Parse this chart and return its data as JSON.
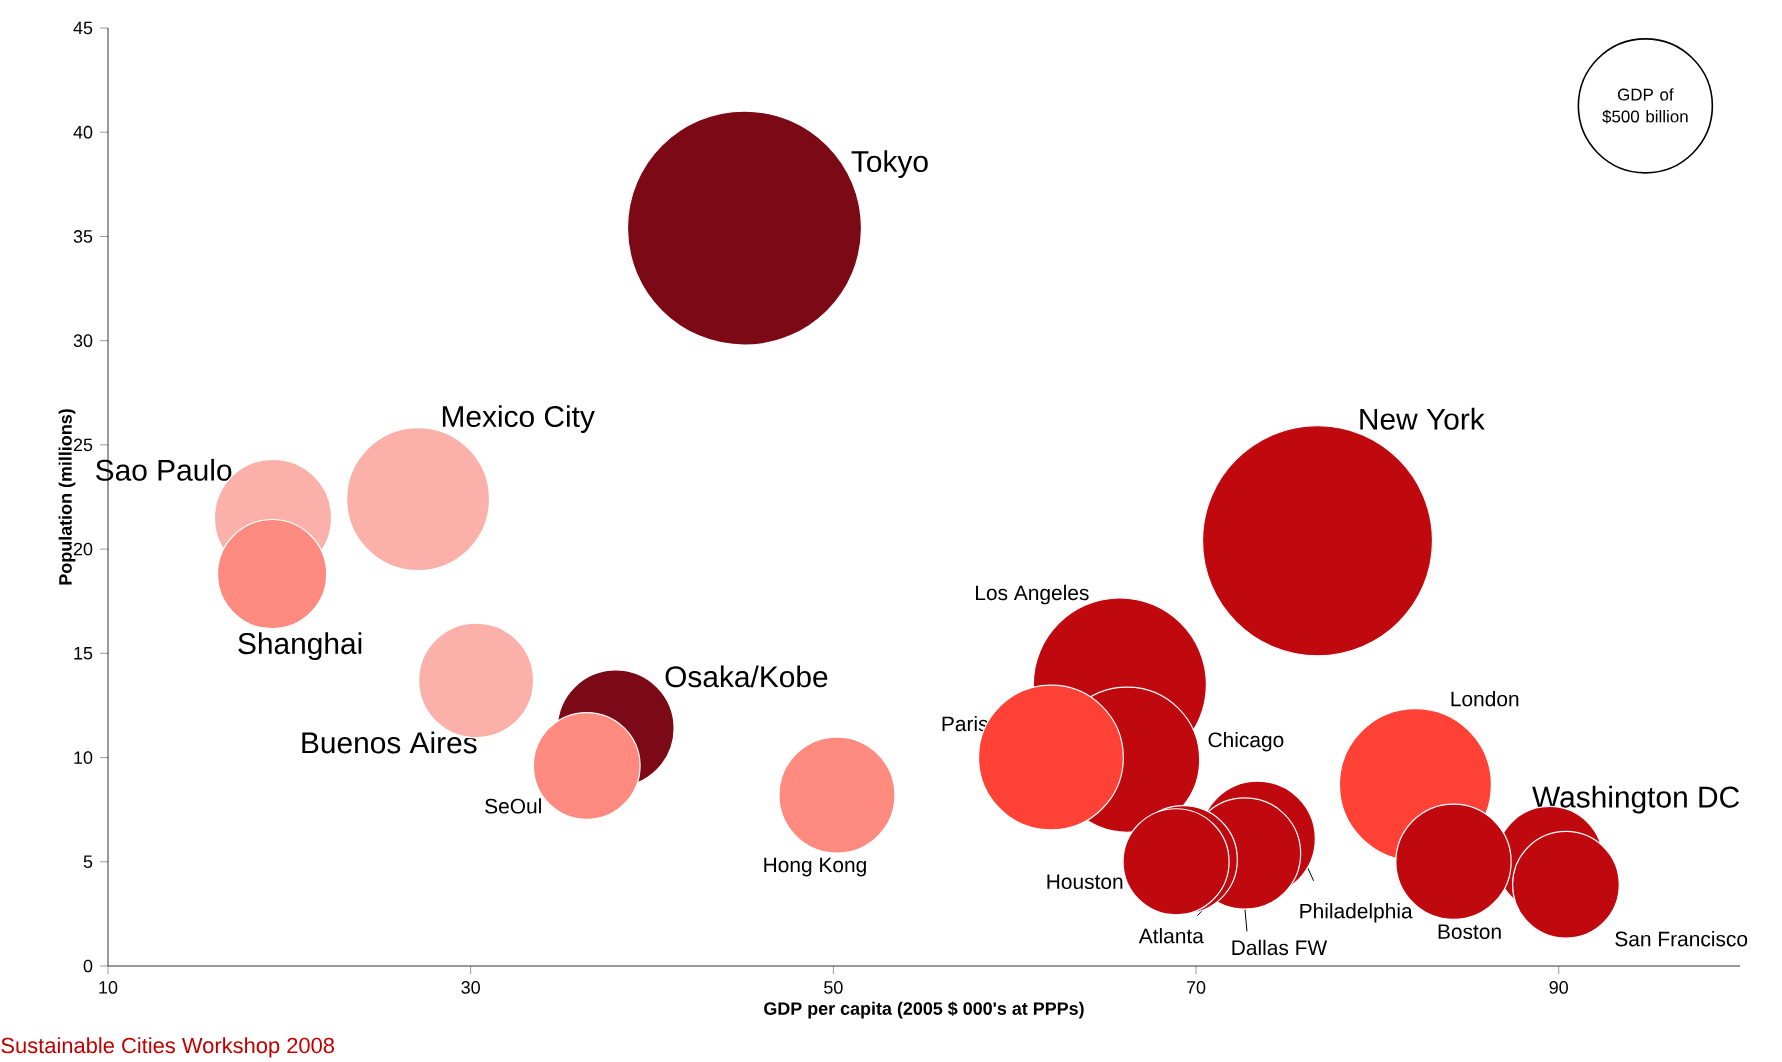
{
  "chart_data": {
    "type": "bubble",
    "xlabel": "GDP per capita (2005 $ 000's at PPPs)",
    "ylabel": "Population (millions)",
    "x": [
      45.1,
      19.1,
      19.05,
      27.1,
      30.3,
      38.0,
      36.4,
      50.2,
      76.7,
      65.8,
      66.2,
      62.0,
      82.1,
      73.4,
      72.7,
      69.3,
      68.9,
      89.5,
      84.2,
      90.4
    ],
    "values": [
      35.4,
      21.5,
      18.8,
      22.4,
      13.7,
      11.4,
      9.6,
      8.2,
      20.4,
      13.5,
      9.9,
      10.0,
      8.7,
      6.1,
      5.4,
      5.1,
      5.0,
      5.1,
      5.0,
      3.9
    ],
    "sizes": [
      1525,
      382,
      332,
      568,
      367,
      380,
      317,
      375,
      1473,
      835,
      587,
      584,
      643,
      370,
      345,
      325,
      313,
      317,
      370,
      317
    ],
    "colors": [
      "#7b0a16",
      "#fbb0a9",
      "#ff8a80",
      "#fbb0a9",
      "#fbb0a9",
      "#7b0a16",
      "#ff8a80",
      "#ff8a80",
      "#c0080f",
      "#c0080f",
      "#c0080f",
      "#ff4136",
      "#ff4136",
      "#c0080f",
      "#c0080f",
      "#c0080f",
      "#c0080f",
      "#c0080f",
      "#c0080f",
      "#c0080f"
    ],
    "size_legend": [
      {
        "value": 500,
        "label": "GDP of $500 billion"
      }
    ],
    "xlim": [
      10,
      100
    ],
    "ylim": [
      0,
      45
    ],
    "xticks": [
      10,
      30,
      50,
      70,
      90
    ],
    "yticks": [
      0,
      5,
      10,
      15,
      20,
      25,
      30,
      35,
      40,
      45
    ],
    "annotations": [
      "Tokyo",
      "Sao Paulo",
      "Shanghai",
      "Mexico City",
      "Buenos Aires",
      "Osaka/Kobe",
      "SeOul",
      "Hong Kong",
      "New York",
      "Los Angeles",
      "Chicago",
      "Paris",
      "London",
      "Philadelphia",
      "Dallas FW",
      "Atlanta",
      "Houston",
      "Washington DC",
      "Boston",
      "San Francisco",
      "Sustainable Cities Workshop 2008"
    ]
  }
}
